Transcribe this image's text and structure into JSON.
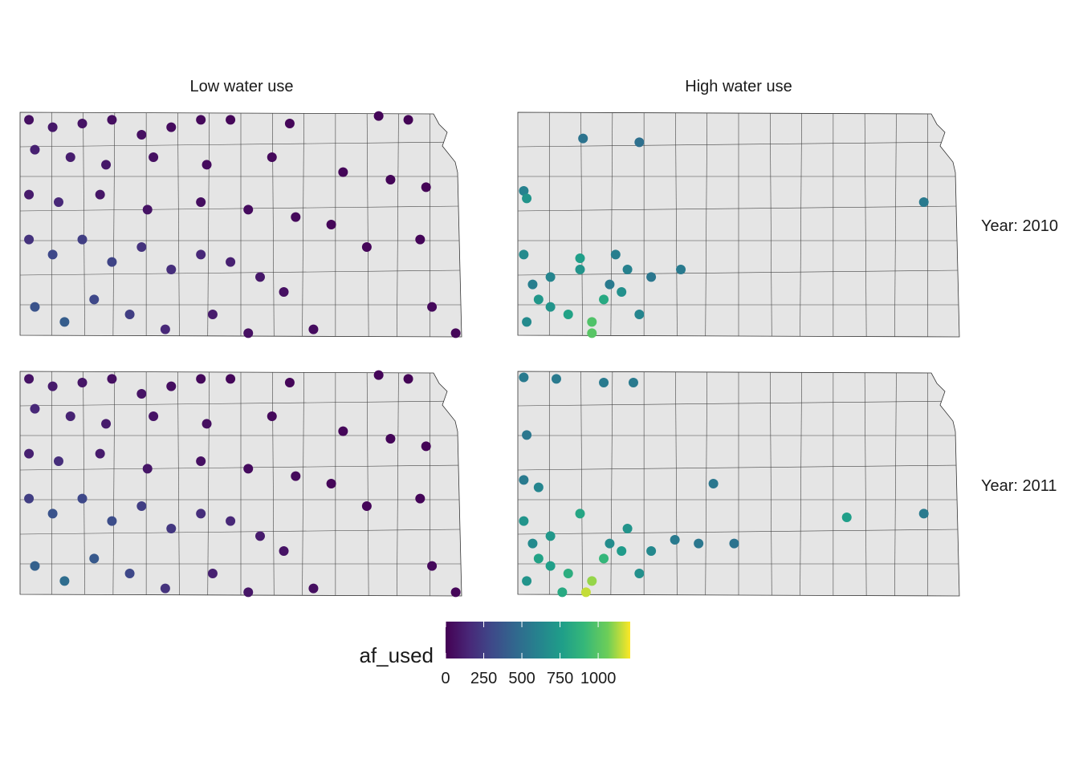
{
  "facets": {
    "columns": [
      "Low water use",
      "High water use"
    ],
    "rows": [
      "Year:  2010",
      "Year:  2011"
    ]
  },
  "legend": {
    "title": "af_used",
    "ticks": [
      0,
      250,
      500,
      750,
      1000
    ],
    "limits": [
      0,
      1210
    ]
  },
  "panels": [
    {
      "points": [
        [
          -101.9,
          39.9,
          60
        ],
        [
          -101.5,
          39.8,
          90
        ],
        [
          -101.0,
          39.85,
          70
        ],
        [
          -100.5,
          39.9,
          50
        ],
        [
          -100.0,
          39.7,
          60
        ],
        [
          -99.5,
          39.8,
          40
        ],
        [
          -99.0,
          39.9,
          30
        ],
        [
          -98.5,
          39.9,
          20
        ],
        [
          -97.5,
          39.85,
          20
        ],
        [
          -96.0,
          39.95,
          15
        ],
        [
          -95.5,
          39.9,
          10
        ],
        [
          -101.8,
          39.5,
          120
        ],
        [
          -101.2,
          39.4,
          110
        ],
        [
          -100.6,
          39.3,
          90
        ],
        [
          -99.8,
          39.4,
          60
        ],
        [
          -98.9,
          39.3,
          40
        ],
        [
          -97.8,
          39.4,
          30
        ],
        [
          -96.6,
          39.2,
          20
        ],
        [
          -95.8,
          39.1,
          15
        ],
        [
          -95.2,
          39.0,
          10
        ],
        [
          -101.9,
          38.9,
          100
        ],
        [
          -101.4,
          38.8,
          150
        ],
        [
          -100.7,
          38.9,
          80
        ],
        [
          -99.9,
          38.7,
          70
        ],
        [
          -99.0,
          38.8,
          50
        ],
        [
          -98.2,
          38.7,
          40
        ],
        [
          -97.4,
          38.6,
          30
        ],
        [
          -96.8,
          38.5,
          20
        ],
        [
          -101.9,
          38.3,
          200
        ],
        [
          -101.5,
          38.1,
          300
        ],
        [
          -101.0,
          38.3,
          250
        ],
        [
          -100.5,
          38.0,
          280
        ],
        [
          -100.0,
          38.2,
          200
        ],
        [
          -99.5,
          37.9,
          180
        ],
        [
          -99.0,
          38.1,
          150
        ],
        [
          -98.5,
          38.0,
          120
        ],
        [
          -98.0,
          37.8,
          90
        ],
        [
          -97.6,
          37.6,
          60
        ],
        [
          -101.8,
          37.4,
          350
        ],
        [
          -101.3,
          37.2,
          400
        ],
        [
          -100.8,
          37.5,
          300
        ],
        [
          -100.2,
          37.3,
          250
        ],
        [
          -99.6,
          37.1,
          150
        ],
        [
          -98.8,
          37.3,
          100
        ],
        [
          -98.2,
          37.05,
          60
        ],
        [
          -97.1,
          37.1,
          40
        ],
        [
          -95.1,
          37.4,
          30
        ],
        [
          -94.7,
          37.05,
          20
        ],
        [
          -96.2,
          38.2,
          20
        ],
        [
          -95.3,
          38.3,
          15
        ]
      ]
    },
    {
      "points": [
        [
          -100.95,
          39.65,
          520
        ],
        [
          -100.0,
          39.6,
          500
        ],
        [
          -101.95,
          38.95,
          600
        ],
        [
          -101.9,
          38.85,
          700
        ],
        [
          -101.95,
          38.1,
          650
        ],
        [
          -101.8,
          37.7,
          580
        ],
        [
          -101.5,
          37.8,
          620
        ],
        [
          -101.0,
          37.9,
          700
        ],
        [
          -100.5,
          37.7,
          560
        ],
        [
          -100.2,
          37.9,
          600
        ],
        [
          -99.8,
          37.8,
          540
        ],
        [
          -99.3,
          37.9,
          560
        ],
        [
          -101.2,
          37.3,
          780
        ],
        [
          -100.8,
          37.2,
          980
        ],
        [
          -100.6,
          37.5,
          820
        ],
        [
          -101.9,
          37.2,
          650
        ],
        [
          -101.5,
          37.4,
          700
        ],
        [
          -101.0,
          38.05,
          760
        ],
        [
          -100.4,
          38.1,
          580
        ],
        [
          -95.2,
          38.8,
          560
        ],
        [
          -100.8,
          37.05,
          1000
        ],
        [
          -100.0,
          37.3,
          620
        ],
        [
          -101.7,
          37.5,
          720
        ],
        [
          -100.3,
          37.6,
          680
        ]
      ]
    },
    {
      "points": [
        [
          -101.9,
          39.9,
          70
        ],
        [
          -101.5,
          39.8,
          100
        ],
        [
          -101.0,
          39.85,
          80
        ],
        [
          -100.5,
          39.9,
          60
        ],
        [
          -100.0,
          39.7,
          70
        ],
        [
          -99.5,
          39.8,
          50
        ],
        [
          -99.0,
          39.9,
          30
        ],
        [
          -98.5,
          39.9,
          25
        ],
        [
          -97.5,
          39.85,
          20
        ],
        [
          -96.0,
          39.95,
          15
        ],
        [
          -95.5,
          39.9,
          10
        ],
        [
          -101.8,
          39.5,
          150
        ],
        [
          -101.2,
          39.4,
          130
        ],
        [
          -100.6,
          39.3,
          100
        ],
        [
          -99.8,
          39.4,
          70
        ],
        [
          -98.9,
          39.3,
          50
        ],
        [
          -97.8,
          39.4,
          30
        ],
        [
          -96.6,
          39.2,
          20
        ],
        [
          -95.8,
          39.1,
          15
        ],
        [
          -95.2,
          39.0,
          10
        ],
        [
          -101.9,
          38.9,
          120
        ],
        [
          -101.4,
          38.8,
          180
        ],
        [
          -100.7,
          38.9,
          100
        ],
        [
          -99.9,
          38.7,
          80
        ],
        [
          -99.0,
          38.8,
          60
        ],
        [
          -98.2,
          38.7,
          40
        ],
        [
          -97.4,
          38.6,
          30
        ],
        [
          -96.8,
          38.5,
          20
        ],
        [
          -101.9,
          38.3,
          250
        ],
        [
          -101.5,
          38.1,
          350
        ],
        [
          -101.0,
          38.3,
          300
        ],
        [
          -100.5,
          38.0,
          320
        ],
        [
          -100.0,
          38.2,
          250
        ],
        [
          -99.5,
          37.9,
          220
        ],
        [
          -99.0,
          38.1,
          180
        ],
        [
          -98.5,
          38.0,
          150
        ],
        [
          -98.0,
          37.8,
          100
        ],
        [
          -97.6,
          37.6,
          70
        ],
        [
          -101.8,
          37.4,
          420
        ],
        [
          -101.3,
          37.2,
          480
        ],
        [
          -100.8,
          37.5,
          380
        ],
        [
          -100.2,
          37.3,
          300
        ],
        [
          -99.6,
          37.1,
          200
        ],
        [
          -98.8,
          37.3,
          120
        ],
        [
          -98.2,
          37.05,
          80
        ],
        [
          -97.1,
          37.1,
          50
        ],
        [
          -95.1,
          37.4,
          30
        ],
        [
          -94.7,
          37.05,
          20
        ],
        [
          -96.2,
          38.2,
          20
        ],
        [
          -95.3,
          38.3,
          15
        ]
      ]
    },
    {
      "points": [
        [
          -101.95,
          39.92,
          560
        ],
        [
          -101.4,
          39.9,
          560
        ],
        [
          -100.6,
          39.85,
          560
        ],
        [
          -100.1,
          39.85,
          560
        ],
        [
          -101.9,
          39.15,
          540
        ],
        [
          -101.95,
          38.55,
          560
        ],
        [
          -101.7,
          38.45,
          620
        ],
        [
          -98.75,
          38.5,
          540
        ],
        [
          -96.5,
          38.05,
          760
        ],
        [
          -95.2,
          38.1,
          560
        ],
        [
          -99.4,
          37.75,
          560
        ],
        [
          -99.0,
          37.7,
          540
        ],
        [
          -98.4,
          37.7,
          520
        ],
        [
          -101.95,
          38.0,
          700
        ],
        [
          -101.8,
          37.7,
          650
        ],
        [
          -101.5,
          37.8,
          720
        ],
        [
          -101.0,
          38.1,
          800
        ],
        [
          -100.5,
          37.7,
          660
        ],
        [
          -100.2,
          37.9,
          700
        ],
        [
          -99.8,
          37.6,
          640
        ],
        [
          -101.2,
          37.3,
          850
        ],
        [
          -100.8,
          37.2,
          1100
        ],
        [
          -100.9,
          37.05,
          1150
        ],
        [
          -100.6,
          37.5,
          900
        ],
        [
          -101.9,
          37.2,
          700
        ],
        [
          -101.5,
          37.4,
          760
        ],
        [
          -100.0,
          37.3,
          680
        ],
        [
          -101.7,
          37.5,
          780
        ],
        [
          -100.3,
          37.6,
          740
        ],
        [
          -101.3,
          37.05,
          820
        ]
      ]
    }
  ]
}
